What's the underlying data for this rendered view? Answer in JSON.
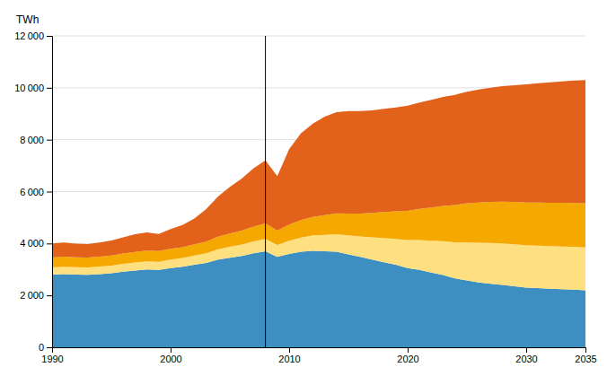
{
  "chart_data": {
    "type": "area",
    "stacked": true,
    "ylabel": "TWh",
    "x": [
      1990,
      1991,
      1992,
      1993,
      1994,
      1995,
      1996,
      1997,
      1998,
      1999,
      2000,
      2001,
      2002,
      2003,
      2004,
      2005,
      2006,
      2007,
      2008,
      2009,
      2010,
      2011,
      2012,
      2013,
      2014,
      2015,
      2016,
      2017,
      2018,
      2019,
      2020,
      2021,
      2022,
      2023,
      2024,
      2025,
      2026,
      2027,
      2028,
      2029,
      2030,
      2031,
      2032,
      2033,
      2034,
      2035
    ],
    "series": [
      {
        "color": "#3E8FC1",
        "values": [
          2800,
          2820,
          2800,
          2790,
          2820,
          2850,
          2910,
          2960,
          3000,
          2980,
          3050,
          3100,
          3180,
          3250,
          3380,
          3450,
          3520,
          3620,
          3700,
          3480,
          3600,
          3680,
          3720,
          3700,
          3680,
          3580,
          3480,
          3380,
          3280,
          3180,
          3050,
          2980,
          2880,
          2780,
          2650,
          2580,
          2500,
          2450,
          2400,
          2350,
          2300,
          2280,
          2260,
          2240,
          2220,
          2200
        ]
      },
      {
        "color": "#FFE080",
        "values": [
          280,
          285,
          285,
          288,
          292,
          298,
          305,
          312,
          315,
          318,
          330,
          340,
          355,
          375,
          400,
          420,
          440,
          460,
          480,
          460,
          510,
          550,
          590,
          630,
          680,
          730,
          790,
          860,
          930,
          1000,
          1080,
          1150,
          1230,
          1310,
          1400,
          1470,
          1530,
          1570,
          1600,
          1620,
          1630,
          1635,
          1640,
          1645,
          1650,
          1650
        ]
      },
      {
        "color": "#F5A800",
        "values": [
          380,
          385,
          382,
          378,
          382,
          390,
          398,
          405,
          410,
          408,
          415,
          420,
          430,
          450,
          480,
          510,
          540,
          570,
          590,
          560,
          620,
          670,
          710,
          760,
          800,
          840,
          880,
          940,
          1000,
          1060,
          1130,
          1200,
          1280,
          1360,
          1430,
          1500,
          1550,
          1580,
          1610,
          1630,
          1650,
          1660,
          1670,
          1680,
          1690,
          1700
        ]
      },
      {
        "color": "#E2621B",
        "values": [
          540,
          545,
          530,
          520,
          545,
          575,
          620,
          680,
          700,
          660,
          760,
          850,
          1000,
          1250,
          1550,
          1800,
          2000,
          2250,
          2430,
          2100,
          2900,
          3350,
          3600,
          3800,
          3900,
          3950,
          3950,
          3950,
          3980,
          4000,
          4050,
          4100,
          4150,
          4200,
          4250,
          4300,
          4350,
          4400,
          4450,
          4500,
          4550,
          4600,
          4640,
          4680,
          4720,
          4750
        ]
      }
    ],
    "vlines": [
      2008
    ],
    "xlim": [
      1990,
      2035
    ],
    "xticks": [
      1990,
      2000,
      2010,
      2020,
      2030,
      2035
    ],
    "ylim": [
      0,
      12000
    ],
    "yticks": [
      0,
      {
        "value": 2000,
        "label": "2 000"
      },
      {
        "value": 4000,
        "label": "4 000"
      },
      {
        "value": 6000,
        "label": "6 000"
      },
      {
        "value": 8000,
        "label": "8 000"
      },
      {
        "value": 10000,
        "label": "10 000"
      },
      {
        "value": 12000,
        "label": "12 000"
      }
    ],
    "grid": true
  }
}
